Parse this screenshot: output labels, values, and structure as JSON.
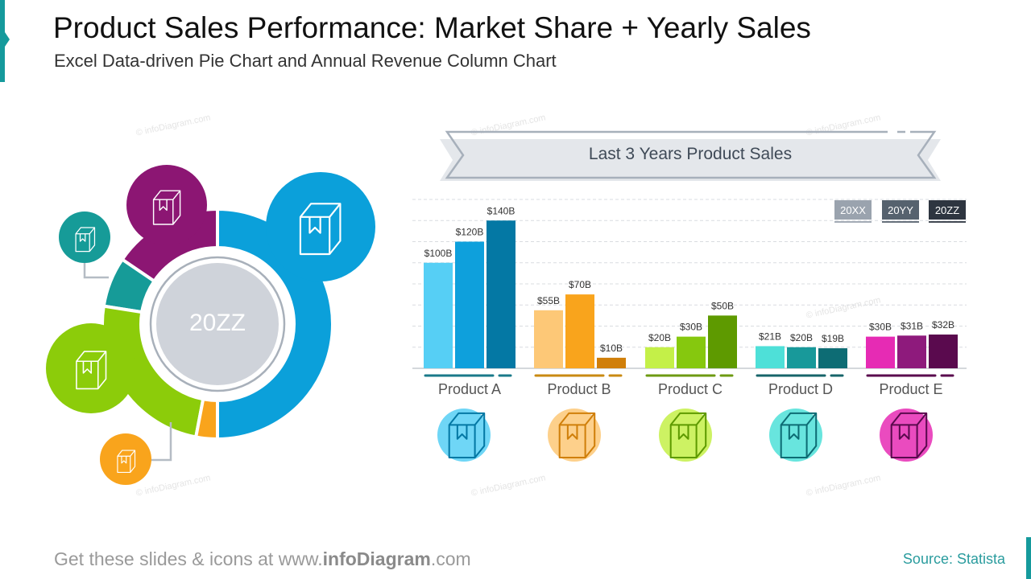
{
  "header": {
    "title": "Product Sales Performance: Market Share + Yearly Sales",
    "subtitle": "Excel Data-driven Pie Chart and Annual Revenue Column Chart"
  },
  "footer": {
    "prefix": "Get these slides & icons at www.",
    "brand": "infoDiagram",
    "suffix": ".com",
    "source": "Source: Statista"
  },
  "watermark": "© infoDiagram.com",
  "colors": {
    "accent": "#159a9c",
    "productA": [
      "#56cff5",
      "#0ea0dc",
      "#0478a4"
    ],
    "productB": [
      "#fdc877",
      "#f9a41c",
      "#d07f0a"
    ],
    "productC": [
      "#c4f048",
      "#86c80e",
      "#5e9a00"
    ],
    "productD": [
      "#4ee0d8",
      "#18999a",
      "#0d6c74"
    ],
    "productE": [
      "#e62bb4",
      "#8e1a7c",
      "#5a0a4e"
    ]
  },
  "chart_data": [
    {
      "type": "pie",
      "title": "",
      "center_label": "20ZZ",
      "series": [
        {
          "name": "Product A",
          "value": 50.0,
          "color": "#0ba0da"
        },
        {
          "name": "Product B",
          "value": 3.0,
          "color": "#f9a41c"
        },
        {
          "name": "Product C",
          "value": 24.5,
          "color": "#8ccc0a"
        },
        {
          "name": "Product D",
          "value": 7.0,
          "color": "#169b98"
        },
        {
          "name": "Product E",
          "value": 15.5,
          "color": "#8c1673"
        }
      ]
    },
    {
      "type": "bar",
      "title": "Last 3 Years Product Sales",
      "categories": [
        "Product A",
        "Product B",
        "Product C",
        "Product D",
        "Product E"
      ],
      "series": [
        {
          "name": "20XX",
          "values": [
            100,
            55,
            20,
            21,
            30
          ],
          "labels": [
            "$100B",
            "$55B",
            "$20B",
            "$21B",
            "$30B"
          ]
        },
        {
          "name": "20YY",
          "values": [
            120,
            70,
            30,
            20,
            31
          ],
          "labels": [
            "$120B",
            "$70B",
            "$30B",
            "$20B",
            "$31B"
          ]
        },
        {
          "name": "20ZZ",
          "values": [
            140,
            10,
            50,
            19,
            32
          ],
          "labels": [
            "$140B",
            "$10B",
            "$50B",
            "$19B",
            "$32B"
          ]
        }
      ],
      "legend_colors": [
        "#9aa3ae",
        "#56626e",
        "#2e3540"
      ],
      "unit": "$B",
      "ylim": [
        0,
        160
      ],
      "grid": true,
      "legend": "top-right"
    }
  ]
}
